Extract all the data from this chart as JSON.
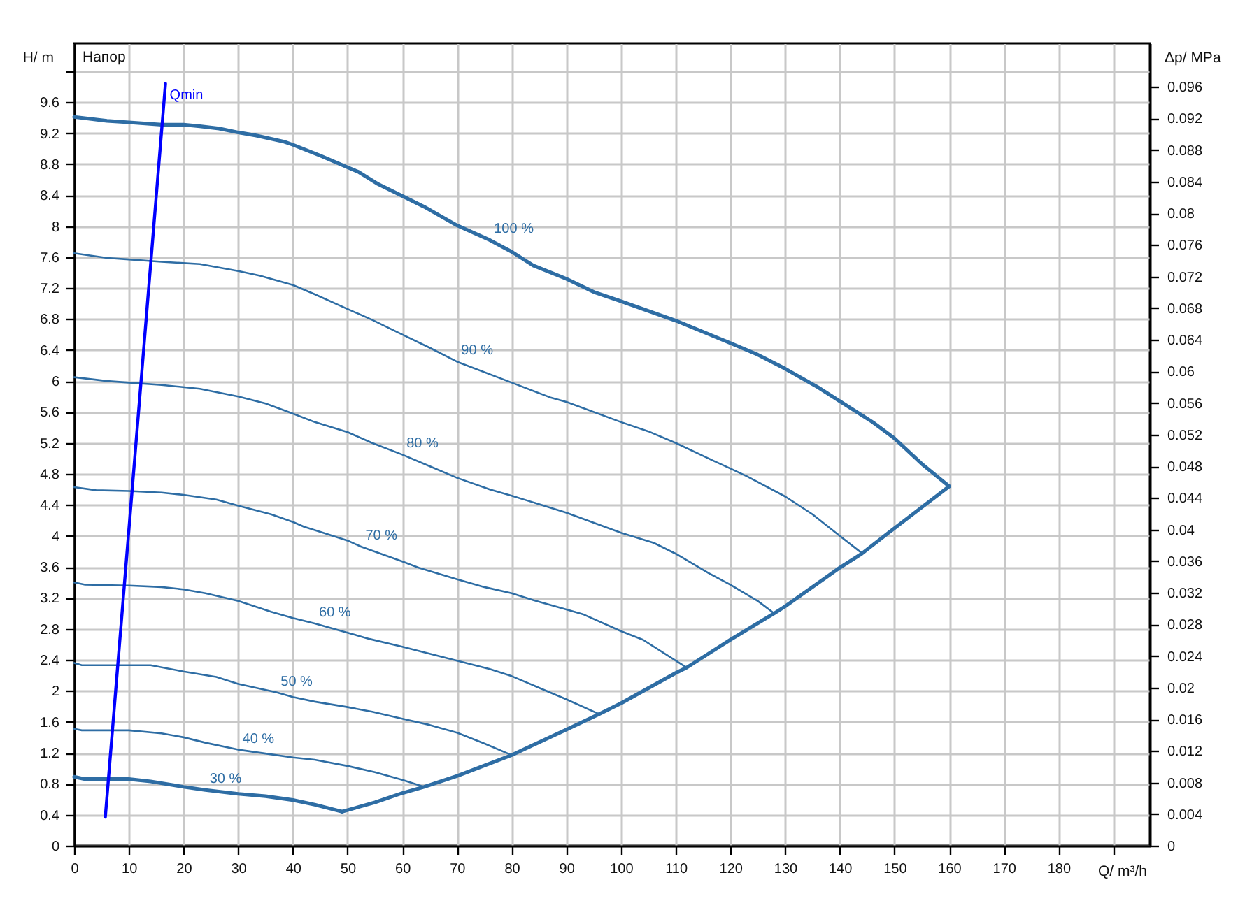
{
  "chart_data": {
    "type": "line",
    "title": "Напор",
    "xlabel": "Q/ m³/h",
    "ylabel": "H/ m",
    "y2label": "Δp/ MPa",
    "xlim": [
      0,
      196.7
    ],
    "xticks": [
      0,
      10,
      20,
      30,
      40,
      50,
      60,
      70,
      80,
      90,
      100,
      110,
      120,
      130,
      140,
      150,
      160,
      170,
      180,
      {
        "value": 190,
        "label": null
      }
    ],
    "ylim": [
      0,
      10.36
    ],
    "yticks": [
      0,
      0.4,
      0.8,
      1.2,
      1.6,
      2,
      2.4,
      2.8,
      3.2,
      3.6,
      4,
      4.4,
      4.8,
      5.2,
      5.6,
      6,
      6.4,
      6.8,
      7.2,
      7.6,
      8,
      8.4,
      8.8,
      9.2,
      9.6,
      {
        "value": 10,
        "label": null
      }
    ],
    "y2lim": [
      0,
      0.1015
    ],
    "y2ticks": [
      0,
      0.004,
      0.008,
      0.012,
      0.016,
      0.02,
      0.024,
      0.028,
      0.032,
      0.036,
      0.04,
      0.044,
      0.048,
      0.052,
      0.056,
      0.06,
      0.064,
      0.068,
      0.072,
      0.076,
      0.08,
      0.084,
      0.088,
      0.092,
      0.096
    ],
    "grid": true,
    "series": [
      {
        "name": "100 %",
        "color": "#2e6da4",
        "x": [
          0,
          6,
          10,
          16,
          20,
          23,
          26.5,
          30,
          33.3,
          38.4,
          40,
          45,
          50,
          52,
          55.4,
          60,
          64,
          70,
          76,
          80,
          84,
          90,
          95,
          100,
          110,
          120,
          125,
          130,
          136,
          140,
          146,
          150,
          155,
          160
        ],
        "values": [
          9.41,
          9.36,
          9.34,
          9.31,
          9.31,
          9.29,
          9.26,
          9.21,
          9.17,
          9.09,
          9.05,
          8.91,
          8.76,
          8.7,
          8.55,
          8.39,
          8.25,
          8.01,
          7.82,
          7.67,
          7.49,
          7.32,
          7.15,
          7.03,
          6.78,
          6.49,
          6.34,
          6.16,
          5.92,
          5.74,
          5.47,
          5.26,
          4.93,
          4.64
        ]
      },
      {
        "name": "90 %",
        "color": "#2e6da4",
        "x": [
          0,
          6,
          10,
          16,
          23,
          30,
          34,
          40,
          44,
          50,
          54.5,
          60,
          65,
          70,
          80,
          87,
          90,
          100,
          105,
          110,
          116,
          120,
          123,
          130,
          135,
          140,
          144
        ],
        "values": [
          7.65,
          7.59,
          7.57,
          7.54,
          7.51,
          7.42,
          7.36,
          7.24,
          7.12,
          6.93,
          6.79,
          6.6,
          6.43,
          6.25,
          5.98,
          5.79,
          5.73,
          5.47,
          5.35,
          5.2,
          5.0,
          4.87,
          4.77,
          4.51,
          4.28,
          4.0,
          3.78
        ]
      },
      {
        "name": "80 %",
        "color": "#2e6da4",
        "x": [
          0,
          6,
          10,
          16,
          23,
          30,
          35,
          40,
          44,
          50,
          54.5,
          60,
          65,
          70,
          76,
          80,
          90,
          100,
          106,
          110,
          116,
          120,
          125,
          128
        ],
        "values": [
          6.05,
          6.0,
          5.98,
          5.95,
          5.9,
          5.8,
          5.71,
          5.58,
          5.47,
          5.34,
          5.2,
          5.05,
          4.9,
          4.75,
          4.6,
          4.52,
          4.3,
          4.04,
          3.91,
          3.77,
          3.52,
          3.37,
          3.16,
          3.0
        ]
      },
      {
        "name": "70 %",
        "color": "#2e6da4",
        "x": [
          0,
          4,
          10,
          16,
          20,
          26,
          30,
          36,
          40,
          42,
          50,
          52.5,
          60,
          63,
          70,
          75,
          80,
          84,
          90,
          93,
          100,
          104,
          112
        ],
        "values": [
          4.63,
          4.59,
          4.58,
          4.56,
          4.53,
          4.47,
          4.39,
          4.28,
          4.18,
          4.12,
          3.94,
          3.86,
          3.67,
          3.59,
          3.44,
          3.34,
          3.26,
          3.17,
          3.05,
          2.99,
          2.77,
          2.66,
          2.3
        ]
      },
      {
        "name": "60 %",
        "color": "#2e6da4",
        "x": [
          0,
          2,
          10,
          16,
          20,
          24,
          30,
          36,
          40,
          44,
          50,
          54,
          60,
          65,
          70,
          76,
          80,
          85,
          90,
          96
        ],
        "values": [
          3.4,
          3.37,
          3.36,
          3.34,
          3.31,
          3.26,
          3.16,
          3.02,
          2.94,
          2.87,
          2.75,
          2.67,
          2.57,
          2.48,
          2.39,
          2.28,
          2.19,
          2.04,
          1.89,
          1.7
        ]
      },
      {
        "name": "50 %",
        "color": "#2e6da4",
        "x": [
          0,
          1.4,
          10,
          14,
          20,
          26,
          30,
          37,
          40,
          44,
          50,
          54.5,
          60,
          65,
          70,
          75,
          80
        ],
        "values": [
          2.36,
          2.33,
          2.33,
          2.33,
          2.25,
          2.18,
          2.09,
          1.98,
          1.92,
          1.86,
          1.79,
          1.73,
          1.64,
          1.56,
          1.46,
          1.32,
          1.17
        ]
      },
      {
        "name": "40 %",
        "color": "#2e6da4",
        "x": [
          0,
          1.4,
          10,
          16,
          20,
          24,
          30,
          35,
          40,
          44,
          50,
          55,
          60,
          64
        ],
        "values": [
          1.51,
          1.49,
          1.49,
          1.45,
          1.4,
          1.33,
          1.24,
          1.19,
          1.14,
          1.11,
          1.03,
          0.95,
          0.85,
          0.76
        ]
      },
      {
        "name": "30 %",
        "color": "#2e6da4",
        "x": [
          0,
          2,
          10,
          14,
          20,
          24,
          30,
          35,
          40,
          44,
          49
        ],
        "values": [
          0.89,
          0.86,
          0.86,
          0.83,
          0.76,
          0.72,
          0.67,
          0.64,
          0.59,
          0.53,
          0.44
        ]
      },
      {
        "color": "#2e6da4",
        "x": [
          49,
          55,
          60,
          64,
          70,
          80,
          90,
          96,
          100,
          110,
          112,
          120,
          128,
          130,
          135,
          140,
          144,
          150,
          155,
          160
        ],
        "values": [
          0.44,
          0.56,
          0.68,
          0.76,
          0.9,
          1.17,
          1.5,
          1.7,
          1.84,
          2.23,
          2.3,
          2.66,
          3.0,
          3.09,
          3.34,
          3.59,
          3.77,
          4.1,
          4.37,
          4.64
        ]
      },
      {
        "name": "Qmin",
        "color": "#0000ff",
        "x": [
          5.7,
          16.7
        ],
        "values": [
          0.37,
          9.84
        ]
      }
    ]
  }
}
